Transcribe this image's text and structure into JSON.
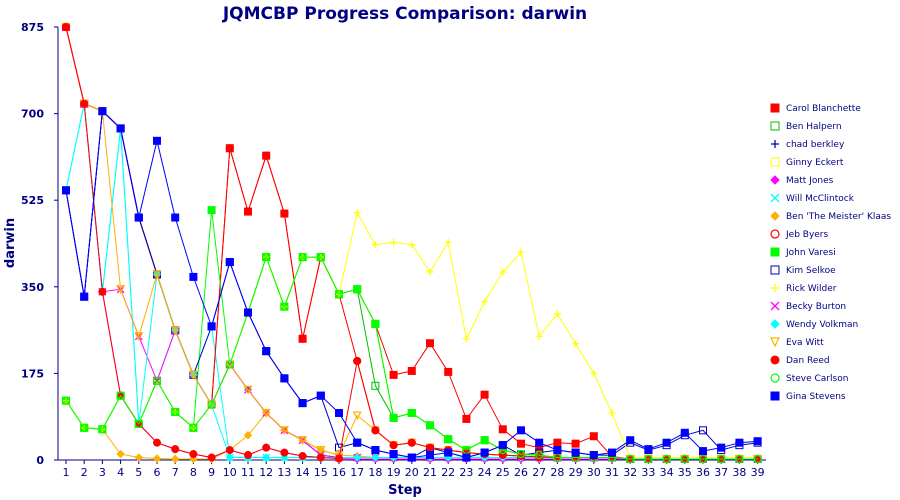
{
  "chart_data": {
    "type": "line",
    "title": "JQMCBP Progress Comparison: darwin",
    "xlabel": "Step",
    "ylabel": "darwin",
    "x": [
      1,
      2,
      3,
      4,
      5,
      6,
      7,
      8,
      9,
      10,
      11,
      12,
      13,
      14,
      15,
      16,
      17,
      18,
      19,
      20,
      21,
      22,
      23,
      24,
      25,
      26,
      27,
      28,
      29,
      30,
      31,
      32,
      33,
      34,
      35,
      36,
      37,
      38,
      39
    ],
    "ylim": [
      0,
      875
    ],
    "yticks": [
      0,
      175,
      350,
      525,
      700,
      875
    ],
    "grid": false,
    "legend_position": "right",
    "series": [
      {
        "name": "Carol Blanchette",
        "color": "#ff0000",
        "marker": "square-filled",
        "values": [
          875,
          720,
          705,
          670,
          490,
          375,
          262,
          172,
          112,
          630,
          502,
          615,
          498,
          245,
          410,
          335,
          345,
          275,
          172,
          180,
          236,
          178,
          83,
          132,
          62,
          33,
          25,
          35,
          33,
          48,
          7,
          2,
          2,
          2,
          2,
          2,
          2,
          2,
          2
        ]
      },
      {
        "name": "Ben Halpern",
        "color": "#00c000",
        "marker": "square-open",
        "values": [
          120,
          65,
          62,
          130,
          73,
          160,
          97,
          65,
          112,
          193,
          298,
          410,
          310,
          410,
          410,
          335,
          345,
          150,
          85,
          95,
          70,
          42,
          20,
          40,
          20,
          12,
          10,
          5,
          5,
          5,
          5,
          2,
          2,
          2,
          2,
          2,
          2,
          2,
          2
        ]
      },
      {
        "name": "chad berkley",
        "color": "#0000c0",
        "marker": "plus",
        "values": [
          545,
          330,
          705,
          670,
          490,
          375,
          262,
          172,
          112,
          193,
          142,
          95,
          60,
          40,
          10,
          5,
          5,
          5,
          5,
          5,
          5,
          5,
          5,
          5,
          5,
          5,
          5,
          5,
          5,
          5,
          5,
          2,
          2,
          2,
          2,
          2,
          2,
          2,
          2
        ]
      },
      {
        "name": "Ginny Eckert",
        "color": "#ffff00",
        "marker": "square-open",
        "values": [
          120,
          65,
          62,
          130,
          73,
          160,
          97,
          65,
          112,
          193,
          298,
          410,
          310,
          410,
          410,
          335,
          345,
          275,
          85,
          95,
          70,
          42,
          20,
          40,
          20,
          12,
          10,
          5,
          5,
          5,
          5,
          2,
          2,
          2,
          2,
          2,
          2,
          2,
          2
        ]
      },
      {
        "name": "Matt Jones",
        "color": "#ff00ff",
        "marker": "diamond-filled",
        "values": [
          875,
          720,
          340,
          130,
          73,
          35,
          22,
          12,
          5,
          20,
          10,
          25,
          15,
          8,
          5,
          3,
          2,
          2,
          2,
          2,
          2,
          2,
          2,
          2,
          2,
          2,
          2,
          2,
          2,
          2,
          2,
          2,
          2,
          2,
          2,
          2,
          2,
          2,
          2
        ]
      },
      {
        "name": "Will McClintock",
        "color": "#00ffff",
        "marker": "x",
        "values": [
          545,
          720,
          340,
          670,
          73,
          160,
          262,
          172,
          270,
          5,
          5,
          5,
          5,
          5,
          5,
          5,
          5,
          5,
          5,
          5,
          5,
          5,
          5,
          5,
          5,
          5,
          5,
          5,
          5,
          5,
          5,
          2,
          2,
          2,
          2,
          2,
          2,
          2,
          2
        ]
      },
      {
        "name": "Ben 'The Meister' Klaas",
        "color": "#ffb000",
        "marker": "diamond-filled",
        "values": [
          120,
          65,
          62,
          12,
          5,
          3,
          2,
          2,
          2,
          20,
          50,
          95,
          60,
          40,
          20,
          10,
          8,
          5,
          5,
          5,
          5,
          5,
          5,
          5,
          5,
          5,
          5,
          5,
          5,
          5,
          5,
          2,
          2,
          2,
          2,
          2,
          2,
          2,
          2
        ]
      },
      {
        "name": "Jeb Byers",
        "color": "#ff0000",
        "marker": "circle-open",
        "values": [
          875,
          720,
          705,
          670,
          490,
          375,
          262,
          172,
          112,
          630,
          502,
          615,
          498,
          245,
          410,
          335,
          200,
          60,
          30,
          35,
          25,
          20,
          15,
          12,
          10,
          8,
          6,
          5,
          5,
          5,
          5,
          2,
          2,
          2,
          2,
          2,
          2,
          2,
          2
        ]
      },
      {
        "name": "John Varesi",
        "color": "#00ff00",
        "marker": "square-filled",
        "values": [
          120,
          65,
          62,
          130,
          73,
          160,
          97,
          65,
          505,
          193,
          298,
          410,
          310,
          410,
          410,
          335,
          345,
          275,
          85,
          95,
          70,
          42,
          20,
          40,
          20,
          12,
          10,
          5,
          5,
          5,
          5,
          2,
          2,
          2,
          2,
          2,
          2,
          2,
          2
        ]
      },
      {
        "name": "Kim Selkoe",
        "color": "#0000c0",
        "marker": "square-open",
        "values": [
          545,
          330,
          705,
          670,
          490,
          375,
          262,
          172,
          270,
          400,
          298,
          220,
          165,
          115,
          130,
          25,
          35,
          20,
          12,
          5,
          25,
          15,
          5,
          15,
          30,
          10,
          15,
          20,
          15,
          10,
          10,
          35,
          20,
          30,
          50,
          60,
          20,
          30,
          35
        ]
      },
      {
        "name": "Rick Wilder",
        "color": "#ffff00",
        "marker": "plus",
        "values": [
          120,
          65,
          62,
          130,
          73,
          160,
          97,
          65,
          112,
          193,
          298,
          410,
          310,
          410,
          410,
          335,
          500,
          435,
          440,
          435,
          380,
          440,
          245,
          320,
          380,
          420,
          250,
          295,
          235,
          175,
          95,
          5,
          5,
          5,
          5,
          5,
          5,
          5,
          5
        ]
      },
      {
        "name": "Becky  Burton",
        "color": "#ff00ff",
        "marker": "x",
        "values": [
          875,
          720,
          340,
          345,
          250,
          160,
          262,
          172,
          112,
          193,
          142,
          95,
          60,
          40,
          10,
          5,
          5,
          5,
          5,
          5,
          5,
          5,
          5,
          5,
          5,
          5,
          5,
          5,
          5,
          5,
          5,
          2,
          2,
          2,
          2,
          2,
          2,
          2,
          2
        ]
      },
      {
        "name": "Wendy Volkman",
        "color": "#00ffff",
        "marker": "diamond-filled",
        "values": [
          545,
          720,
          340,
          670,
          73,
          375,
          262,
          172,
          112,
          5,
          5,
          5,
          5,
          5,
          5,
          5,
          5,
          5,
          5,
          5,
          5,
          5,
          5,
          5,
          5,
          5,
          5,
          5,
          5,
          5,
          5,
          2,
          2,
          2,
          2,
          2,
          2,
          2,
          2
        ]
      },
      {
        "name": "Eva Witt",
        "color": "#ffb000",
        "marker": "triangle-down",
        "values": [
          875,
          720,
          705,
          345,
          250,
          375,
          262,
          172,
          112,
          193,
          142,
          95,
          60,
          40,
          20,
          10,
          90,
          60,
          30,
          35,
          25,
          20,
          15,
          12,
          10,
          8,
          6,
          5,
          5,
          5,
          5,
          2,
          2,
          2,
          2,
          2,
          2,
          2,
          2
        ]
      },
      {
        "name": "Dan Reed",
        "color": "#ff0000",
        "marker": "circle-filled",
        "values": [
          875,
          720,
          340,
          130,
          73,
          35,
          22,
          12,
          5,
          20,
          10,
          25,
          15,
          8,
          5,
          3,
          200,
          60,
          30,
          35,
          25,
          20,
          15,
          12,
          10,
          8,
          6,
          5,
          5,
          5,
          5,
          2,
          2,
          2,
          2,
          2,
          2,
          2,
          2
        ]
      },
      {
        "name": "Steve Carlson",
        "color": "#00ff00",
        "marker": "circle-open",
        "values": [
          120,
          65,
          62,
          130,
          73,
          160,
          97,
          65,
          112,
          193,
          298,
          410,
          310,
          410,
          410,
          335,
          345,
          275,
          85,
          95,
          70,
          42,
          20,
          40,
          20,
          12,
          10,
          5,
          5,
          5,
          5,
          2,
          2,
          2,
          2,
          2,
          2,
          2,
          2
        ]
      },
      {
        "name": "Gina Stevens",
        "color": "#0000ff",
        "marker": "square-filled",
        "values": [
          545,
          330,
          705,
          670,
          490,
          645,
          490,
          370,
          270,
          400,
          298,
          220,
          165,
          115,
          130,
          95,
          35,
          20,
          12,
          5,
          10,
          15,
          5,
          15,
          30,
          60,
          35,
          20,
          15,
          10,
          15,
          40,
          22,
          35,
          55,
          18,
          25,
          35,
          38
        ]
      }
    ]
  }
}
